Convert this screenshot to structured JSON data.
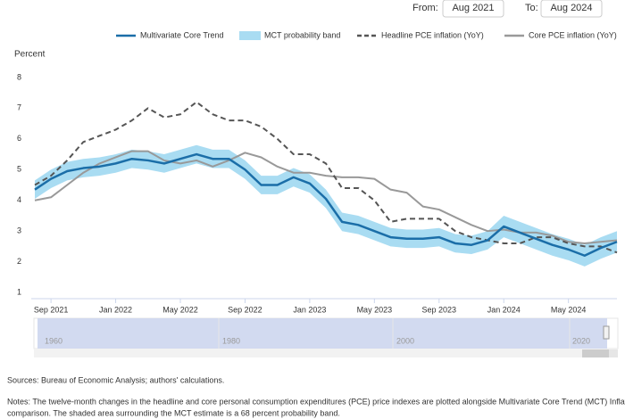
{
  "controls": {
    "from_label": "From:",
    "from_value": "Aug 2021",
    "to_label": "To:",
    "to_value": "Aug 2024"
  },
  "chart_data": {
    "type": "line",
    "y_label": "Percent",
    "x": [
      "2021-08",
      "2021-09",
      "2021-10",
      "2021-11",
      "2021-12",
      "2022-01",
      "2022-02",
      "2022-03",
      "2022-04",
      "2022-05",
      "2022-06",
      "2022-07",
      "2022-08",
      "2022-09",
      "2022-10",
      "2022-11",
      "2022-12",
      "2023-01",
      "2023-02",
      "2023-03",
      "2023-04",
      "2023-05",
      "2023-06",
      "2023-07",
      "2023-08",
      "2023-09",
      "2023-10",
      "2023-11",
      "2023-12",
      "2024-01",
      "2024-02",
      "2024-03",
      "2024-04",
      "2024-05",
      "2024-06",
      "2024-07",
      "2024-08"
    ],
    "xticks": [
      {
        "value": "2021-09",
        "label": "Sep 2021"
      },
      {
        "value": "2022-01",
        "label": "Jan 2022"
      },
      {
        "value": "2022-05",
        "label": "May 2022"
      },
      {
        "value": "2022-09",
        "label": "Sep 2022"
      },
      {
        "value": "2023-01",
        "label": "Jan 2023"
      },
      {
        "value": "2023-05",
        "label": "May 2023"
      },
      {
        "value": "2023-09",
        "label": "Sep 2023"
      },
      {
        "value": "2024-01",
        "label": "Jan 2024"
      },
      {
        "value": "2024-05",
        "label": "May 2024"
      }
    ],
    "ylim": [
      0.8,
      8.2
    ],
    "yticks": [
      1,
      2,
      3,
      4,
      5,
      6,
      7,
      8
    ],
    "grid": false,
    "band": {
      "name": "MCT probability band",
      "color": "#a9dcf2",
      "upper": [
        4.65,
        5.0,
        5.25,
        5.35,
        5.4,
        5.5,
        5.65,
        5.6,
        5.5,
        5.65,
        5.8,
        5.65,
        5.65,
        5.3,
        4.8,
        4.8,
        5.05,
        4.85,
        4.35,
        3.6,
        3.5,
        3.3,
        3.1,
        3.05,
        3.05,
        3.1,
        2.9,
        2.85,
        3.0,
        3.5,
        3.3,
        3.1,
        2.9,
        2.75,
        2.55,
        2.8,
        3.0
      ],
      "lower": [
        4.05,
        4.4,
        4.65,
        4.75,
        4.8,
        4.9,
        5.05,
        5.0,
        4.9,
        5.05,
        5.2,
        5.05,
        5.05,
        4.7,
        4.2,
        4.2,
        4.45,
        4.25,
        3.75,
        3.0,
        2.9,
        2.7,
        2.5,
        2.45,
        2.45,
        2.5,
        2.3,
        2.25,
        2.4,
        2.8,
        2.6,
        2.4,
        2.2,
        2.05,
        1.85,
        2.1,
        2.3
      ]
    },
    "series": [
      {
        "name": "Multivariate Core Trend",
        "color": "#1b6ea8",
        "dash": false,
        "values": [
          4.35,
          4.7,
          4.95,
          5.05,
          5.1,
          5.2,
          5.35,
          5.3,
          5.2,
          5.35,
          5.5,
          5.35,
          5.35,
          5.0,
          4.5,
          4.5,
          4.75,
          4.55,
          4.05,
          3.3,
          3.2,
          3.0,
          2.8,
          2.75,
          2.75,
          2.8,
          2.6,
          2.55,
          2.7,
          3.15,
          2.95,
          2.75,
          2.55,
          2.4,
          2.2,
          2.45,
          2.65
        ]
      },
      {
        "name": "Headline PCE inflation (YoY)",
        "color": "#555555",
        "dash": true,
        "values": [
          4.5,
          4.8,
          5.3,
          5.9,
          6.1,
          6.3,
          6.6,
          7.0,
          6.7,
          6.8,
          7.2,
          6.8,
          6.6,
          6.6,
          6.4,
          6.0,
          5.5,
          5.5,
          5.2,
          4.4,
          4.4,
          4.0,
          3.3,
          3.4,
          3.4,
          3.4,
          3.0,
          2.8,
          2.7,
          2.6,
          2.6,
          2.8,
          2.8,
          2.6,
          2.5,
          2.5,
          2.3
        ]
      },
      {
        "name": "Core PCE inflation (YoY)",
        "color": "#999999",
        "dash": false,
        "values": [
          4.0,
          4.1,
          4.5,
          4.9,
          5.2,
          5.4,
          5.6,
          5.6,
          5.3,
          5.2,
          5.3,
          5.1,
          5.3,
          5.55,
          5.4,
          5.1,
          4.9,
          4.9,
          4.8,
          4.75,
          4.75,
          4.7,
          4.35,
          4.25,
          3.8,
          3.7,
          3.45,
          3.2,
          3.0,
          3.05,
          2.95,
          2.95,
          2.85,
          2.65,
          2.6,
          2.65,
          2.7
        ]
      }
    ]
  },
  "navigator": {
    "labels": [
      "1960",
      "1980",
      "2000",
      "2020"
    ]
  },
  "footer": {
    "sources": "Sources: Bureau of Economic Analysis; authors' calculations.",
    "notes_line1": "Notes: The twelve-month changes in the headline and core personal consumption expenditures (PCE) price indexes are plotted alongside Multivariate Core Trend (MCT) Inflation for",
    "notes_line2": "comparison. The shaded area surrounding the MCT estimate is a 68 percent probability band."
  }
}
